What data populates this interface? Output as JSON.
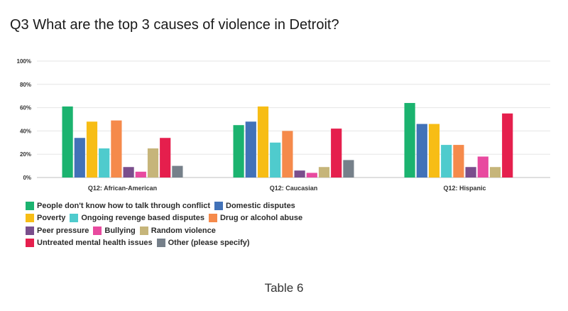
{
  "title": "Q3 What are the top 3 causes of violence in Detroit?",
  "caption": "Table 6",
  "chart_data": {
    "type": "bar",
    "title": "Q3 What are the top 3 causes of violence in Detroit?",
    "xlabel": "",
    "ylabel": "",
    "ylim": [
      0,
      100
    ],
    "yticks": [
      "0%",
      "20%",
      "40%",
      "60%",
      "80%",
      "100%"
    ],
    "grid": true,
    "legend_position": "bottom",
    "categories": [
      "Q12: African-American",
      "Q12: Caucasian",
      "Q12: Hispanic"
    ],
    "series": [
      {
        "name": "People don't know how to talk through conflict",
        "color": "#1bb36f",
        "values": [
          61,
          45,
          64
        ]
      },
      {
        "name": "Domestic disputes",
        "color": "#4272b8",
        "values": [
          34,
          48,
          46
        ]
      },
      {
        "name": "Poverty",
        "color": "#f7bd15",
        "values": [
          48,
          61,
          46
        ]
      },
      {
        "name": "Ongoing revenge based disputes",
        "color": "#4fcbcd",
        "values": [
          25,
          30,
          28
        ]
      },
      {
        "name": "Drug or alcohol abuse",
        "color": "#f58a4b",
        "values": [
          49,
          40,
          28
        ]
      },
      {
        "name": "Peer pressure",
        "color": "#7a4e8c",
        "values": [
          9,
          6,
          9
        ]
      },
      {
        "name": "Bullying",
        "color": "#e84a9f",
        "values": [
          5,
          4,
          18
        ]
      },
      {
        "name": "Random violence",
        "color": "#c6b57a",
        "values": [
          25,
          9,
          9
        ]
      },
      {
        "name": "Untreated mental health issues",
        "color": "#e51f4d",
        "values": [
          34,
          42,
          55
        ]
      },
      {
        "name": "Other (please specify)",
        "color": "#76808a",
        "values": [
          10,
          15,
          0
        ]
      }
    ]
  },
  "legend_rows": [
    [
      0,
      1
    ],
    [
      2,
      3,
      4
    ],
    [
      5,
      6,
      7
    ],
    [
      8,
      9
    ]
  ]
}
